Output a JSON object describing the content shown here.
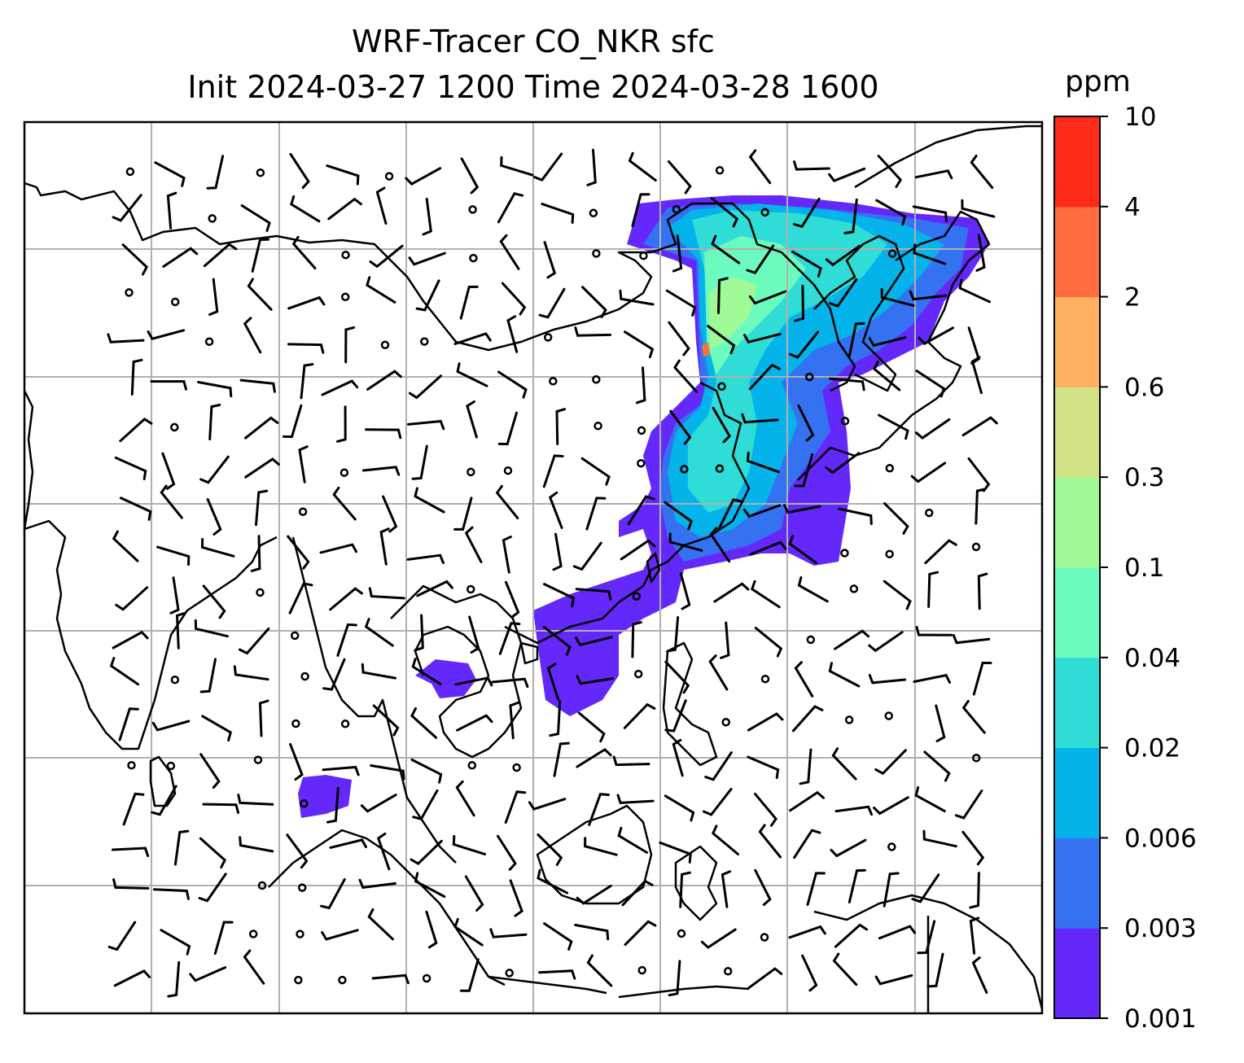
{
  "title_line1": "WRF-Tracer CO_NKR sfc",
  "title_line2": "Init 2024-03-27 1200 Time 2024-03-28 1600",
  "colorbar": {
    "unit": "ppm",
    "tick_labels": [
      "0.001",
      "0.003",
      "0.006",
      "0.02",
      "0.04",
      "0.1",
      "0.3",
      "0.6",
      "2",
      "4",
      "10"
    ],
    "colors": [
      "#6428fa",
      "#3472f2",
      "#03b3ea",
      "#2fdcd6",
      "#6bfbbf",
      "#9ef996",
      "#d1e287",
      "#feb062",
      "#fe6e3e",
      "#ff2a17"
    ]
  },
  "map": {
    "land_color": "#ffffff",
    "coast_color": "#000000",
    "grid_color": "#b0b0b0"
  }
}
